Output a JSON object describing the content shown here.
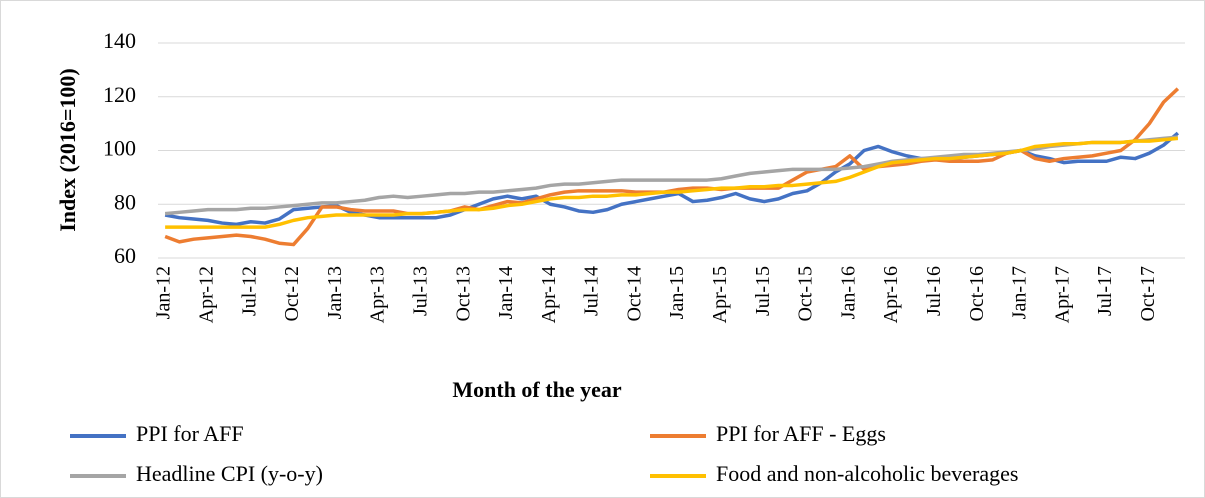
{
  "chart_data": {
    "type": "line",
    "y_label": "Index (2016=100)",
    "x_label": "Month of the year",
    "categories": [
      "Jan-12",
      null,
      null,
      "Apr-12",
      null,
      null,
      "Jul-12",
      null,
      null,
      "Oct-12",
      null,
      null,
      "Jan-13",
      null,
      null,
      "Apr-13",
      null,
      null,
      "Jul-13",
      null,
      null,
      "Oct-13",
      null,
      null,
      "Jan-14",
      null,
      null,
      "Apr-14",
      null,
      null,
      "Jul-14",
      null,
      null,
      "Oct-14",
      null,
      null,
      "Jan-15",
      null,
      null,
      "Apr-15",
      null,
      null,
      "Jul-15",
      null,
      null,
      "Oct-15",
      null,
      null,
      "Jan-16",
      null,
      null,
      "Apr-16",
      null,
      null,
      "Jul-16",
      null,
      null,
      "Oct-16",
      null,
      null,
      "Jan-17",
      null,
      null,
      "Apr-17",
      null,
      null,
      "Jul-17",
      null,
      null,
      "Oct-17",
      null,
      null
    ],
    "ylim": [
      60,
      140
    ],
    "yticks": [
      60,
      80,
      100,
      120,
      140
    ],
    "grid": true,
    "series": [
      {
        "name": "PPI for AFF",
        "color": "#4472c4",
        "values": [
          76,
          75,
          74.5,
          74,
          73,
          72.5,
          73.5,
          73,
          74.5,
          78,
          78.5,
          79,
          79.5,
          77,
          76,
          75,
          75,
          75,
          75,
          75,
          76,
          78,
          80,
          82,
          83,
          82,
          83,
          80,
          79,
          77.5,
          77,
          78,
          80,
          81,
          82,
          83,
          84,
          81,
          81.5,
          82.5,
          84,
          82,
          81,
          82,
          84,
          85,
          88,
          92,
          95,
          100,
          101.5,
          99.5,
          98,
          97,
          97,
          97,
          97.5,
          98,
          98.5,
          99,
          100,
          98,
          97,
          95.5,
          96,
          96,
          96,
          97.5,
          97,
          99,
          102,
          106.5
        ]
      },
      {
        "name": "PPI for AFF - Eggs",
        "color": "#ed7d31",
        "values": [
          68,
          66,
          67,
          67.5,
          68,
          68.5,
          68,
          67,
          65.5,
          65,
          71,
          79,
          79,
          78,
          77.5,
          77.5,
          77.5,
          76.5,
          76.5,
          77,
          77.5,
          79,
          78,
          79.5,
          81,
          80.5,
          82,
          83.5,
          84.5,
          85,
          85,
          85,
          85,
          84.5,
          84.5,
          84.5,
          85.5,
          86,
          86,
          85.5,
          86,
          86,
          86,
          86,
          89,
          92,
          93,
          94,
          98,
          93,
          94,
          94.5,
          95,
          96,
          96.5,
          96,
          96,
          96,
          96.5,
          99,
          100,
          97,
          96,
          97,
          97.5,
          98,
          99,
          100,
          104,
          110,
          118,
          123
        ]
      },
      {
        "name": "Headline CPI (y-o-y)",
        "color": "#a5a5a5",
        "values": [
          76.5,
          77,
          77.5,
          78,
          78,
          78,
          78.5,
          78.5,
          79,
          79.5,
          80,
          80.5,
          80.5,
          81,
          81.5,
          82.5,
          83,
          82.5,
          83,
          83.5,
          84,
          84,
          84.5,
          84.5,
          85,
          85.5,
          86,
          87,
          87.5,
          87.5,
          88,
          88.5,
          89,
          89,
          89,
          89,
          89,
          89,
          89,
          89.5,
          90.5,
          91.5,
          92,
          92.5,
          93,
          93,
          93,
          93,
          93.5,
          94,
          95,
          96,
          96.5,
          97,
          97.5,
          98,
          98.5,
          98.5,
          99,
          99.5,
          100,
          100.5,
          101.5,
          102,
          102.5,
          103,
          103,
          103,
          103.5,
          104,
          104.5,
          105
        ]
      },
      {
        "name": "Food and non-alcoholic beverages",
        "color": "#ffc000",
        "values": [
          71.5,
          71.5,
          71.5,
          71.5,
          71.5,
          71.5,
          71.5,
          71.5,
          72.5,
          74,
          75,
          75.5,
          76,
          76,
          76,
          76,
          76,
          76.5,
          76.5,
          77,
          77.5,
          78,
          78,
          78.5,
          79.5,
          80,
          81,
          82,
          82.5,
          82.5,
          83,
          83,
          83.5,
          83.5,
          84,
          84.5,
          84.5,
          85,
          85.5,
          86,
          86,
          86.5,
          86.5,
          87,
          87,
          87.5,
          88,
          88.5,
          90,
          92,
          94,
          95.5,
          96,
          96.5,
          97,
          97,
          97.5,
          98,
          98.5,
          99,
          100,
          101.5,
          102,
          102.5,
          102.5,
          103,
          103,
          103,
          103.5,
          103.5,
          104,
          104.5
        ]
      }
    ]
  }
}
